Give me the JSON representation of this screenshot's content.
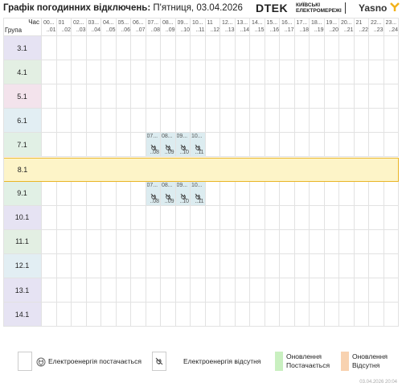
{
  "header": {
    "title": "Графік погодинних відключень:",
    "date": "П'ятниця, 03.04.2026",
    "brand": "DTEK",
    "brand_sub_1": "КИЇВСЬКІ",
    "brand_sub_2": "ЕЛЕКТРОМЕРЕЖІ",
    "partner": "Yasno"
  },
  "table": {
    "corner_top": "Час",
    "corner_bottom": "Група",
    "hours": [
      {
        "from": "00...",
        "to": "..01"
      },
      {
        "from": "01",
        "to": "..02"
      },
      {
        "from": "02...",
        "to": "..03"
      },
      {
        "from": "03...",
        "to": "..04"
      },
      {
        "from": "04...",
        "to": "..05"
      },
      {
        "from": "05...",
        "to": "..06"
      },
      {
        "from": "06...",
        "to": "..07"
      },
      {
        "from": "07...",
        "to": "..08"
      },
      {
        "from": "08...",
        "to": "..09"
      },
      {
        "from": "09...",
        "to": "..10"
      },
      {
        "from": "10...",
        "to": "..11"
      },
      {
        "from": "11",
        "to": "..12"
      },
      {
        "from": "12...",
        "to": "..13"
      },
      {
        "from": "13...",
        "to": "..14"
      },
      {
        "from": "14...",
        "to": "..15"
      },
      {
        "from": "15...",
        "to": "..16"
      },
      {
        "from": "16...",
        "to": "..17"
      },
      {
        "from": "17...",
        "to": "..18"
      },
      {
        "from": "18...",
        "to": "..19"
      },
      {
        "from": "19...",
        "to": "..20"
      },
      {
        "from": "20...",
        "to": "..21"
      },
      {
        "from": "21",
        "to": "..22"
      },
      {
        "from": "22...",
        "to": "..23"
      },
      {
        "from": "23...",
        "to": "..24"
      }
    ],
    "rows": [
      {
        "group": "3.1",
        "color": "#e6e3f3",
        "outages": []
      },
      {
        "group": "4.1",
        "color": "#e3efe3",
        "outages": []
      },
      {
        "group": "5.1",
        "color": "#f3e3ec",
        "outages": []
      },
      {
        "group": "6.1",
        "color": "#e2eef3",
        "outages": []
      },
      {
        "group": "7.1",
        "color": "#e1f0e5",
        "outages": [
          {
            "from": "07...",
            "to": "..08"
          },
          {
            "from": "08...",
            "to": "..09"
          },
          {
            "from": "09...",
            "to": "..10"
          },
          {
            "from": "10...",
            "to": "..11"
          }
        ]
      },
      {
        "group": "8.1",
        "color": "#fdf4c8",
        "highlighted": true,
        "outages": []
      },
      {
        "group": "9.1",
        "color": "#e1f0e5",
        "outages": [
          {
            "from": "07...",
            "to": "..08"
          },
          {
            "from": "08...",
            "to": "..09"
          },
          {
            "from": "09...",
            "to": "..10"
          },
          {
            "from": "10...",
            "to": "..11"
          }
        ]
      },
      {
        "group": "10.1",
        "color": "#e6e3f3",
        "outages": []
      },
      {
        "group": "11.1",
        "color": "#e3efe3",
        "outages": []
      },
      {
        "group": "12.1",
        "color": "#e2eef3",
        "outages": []
      },
      {
        "group": "13.1",
        "color": "#e6e3f3",
        "outages": []
      },
      {
        "group": "14.1",
        "color": "#e6e3f3",
        "outages": []
      }
    ]
  },
  "legend": {
    "supply": "Електроенергія постачається",
    "outage": "Електроенергія відсутня",
    "update_supply": [
      "Оновлення",
      "Постачається"
    ],
    "update_outage": [
      "Оновлення",
      "Відсутня"
    ]
  },
  "footer": "03.04.2026 20:04"
}
